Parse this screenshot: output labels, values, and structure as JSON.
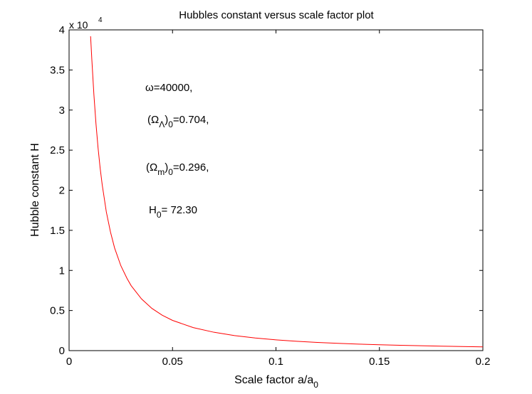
{
  "chart_data": {
    "type": "line",
    "title": "Hubbles constant  versus scale factor  plot",
    "xlabel": {
      "main": "Scale factor a/a",
      "sub": "0"
    },
    "ylabel": "Hubble constant H",
    "y_multiplier": {
      "base": "x 10",
      "exp": "4"
    },
    "xlim": [
      0,
      0.2
    ],
    "ylim": [
      0,
      40000
    ],
    "x_ticks": [
      {
        "value": 0,
        "label": "0"
      },
      {
        "value": 0.05,
        "label": "0.05"
      },
      {
        "value": 0.1,
        "label": "0.1"
      },
      {
        "value": 0.15,
        "label": "0.15"
      },
      {
        "value": 0.2,
        "label": "0.2"
      }
    ],
    "y_ticks": [
      {
        "value": 0,
        "label": "0"
      },
      {
        "value": 5000,
        "label": "0.5"
      },
      {
        "value": 10000,
        "label": "1"
      },
      {
        "value": 15000,
        "label": "1.5"
      },
      {
        "value": 20000,
        "label": "2"
      },
      {
        "value": 25000,
        "label": "2.5"
      },
      {
        "value": 30000,
        "label": "3"
      },
      {
        "value": 35000,
        "label": "3.5"
      },
      {
        "value": 40000,
        "label": "4"
      }
    ],
    "grid": false,
    "line_color": "#ff0000",
    "series": [
      {
        "x": [
          0.0104,
          0.011,
          0.012,
          0.013,
          0.014,
          0.015,
          0.016,
          0.018,
          0.02,
          0.022,
          0.025,
          0.028,
          0.03,
          0.035,
          0.04,
          0.045,
          0.05,
          0.06,
          0.07,
          0.08,
          0.09,
          0.1,
          0.11,
          0.12,
          0.13,
          0.14,
          0.15,
          0.16,
          0.17,
          0.18,
          0.19,
          0.2
        ],
        "y": [
          39200,
          36300,
          31900,
          28300,
          25300,
          22800,
          20700,
          17300,
          14800,
          12800,
          10600,
          9000,
          8100,
          6450,
          5270,
          4420,
          3770,
          2870,
          2290,
          1870,
          1570,
          1340,
          1160,
          1020,
          905,
          810,
          730,
          665,
          605,
          555,
          510,
          470
        ]
      }
    ],
    "annotations": [
      {
        "parts": [
          {
            "t": "ω=40000,",
            "sub": false
          }
        ]
      },
      {
        "parts": [
          {
            "t": "(Ω",
            "sub": false
          },
          {
            "t": "Λ",
            "sub": true
          },
          {
            "t": ")",
            "sub": false
          },
          {
            "t": "0",
            "sub": true
          },
          {
            "t": "=0.704,",
            "sub": false
          }
        ]
      },
      {
        "parts": [
          {
            "t": "(Ω",
            "sub": false
          },
          {
            "t": "m",
            "sub": true
          },
          {
            "t": ")",
            "sub": false
          },
          {
            "t": "0",
            "sub": true
          },
          {
            "t": "=0.296,",
            "sub": false
          }
        ]
      },
      {
        "parts": [
          {
            "t": "H",
            "sub": false
          },
          {
            "t": "0",
            "sub": true
          },
          {
            "t": "= 72.30",
            "sub": false
          }
        ]
      }
    ]
  }
}
